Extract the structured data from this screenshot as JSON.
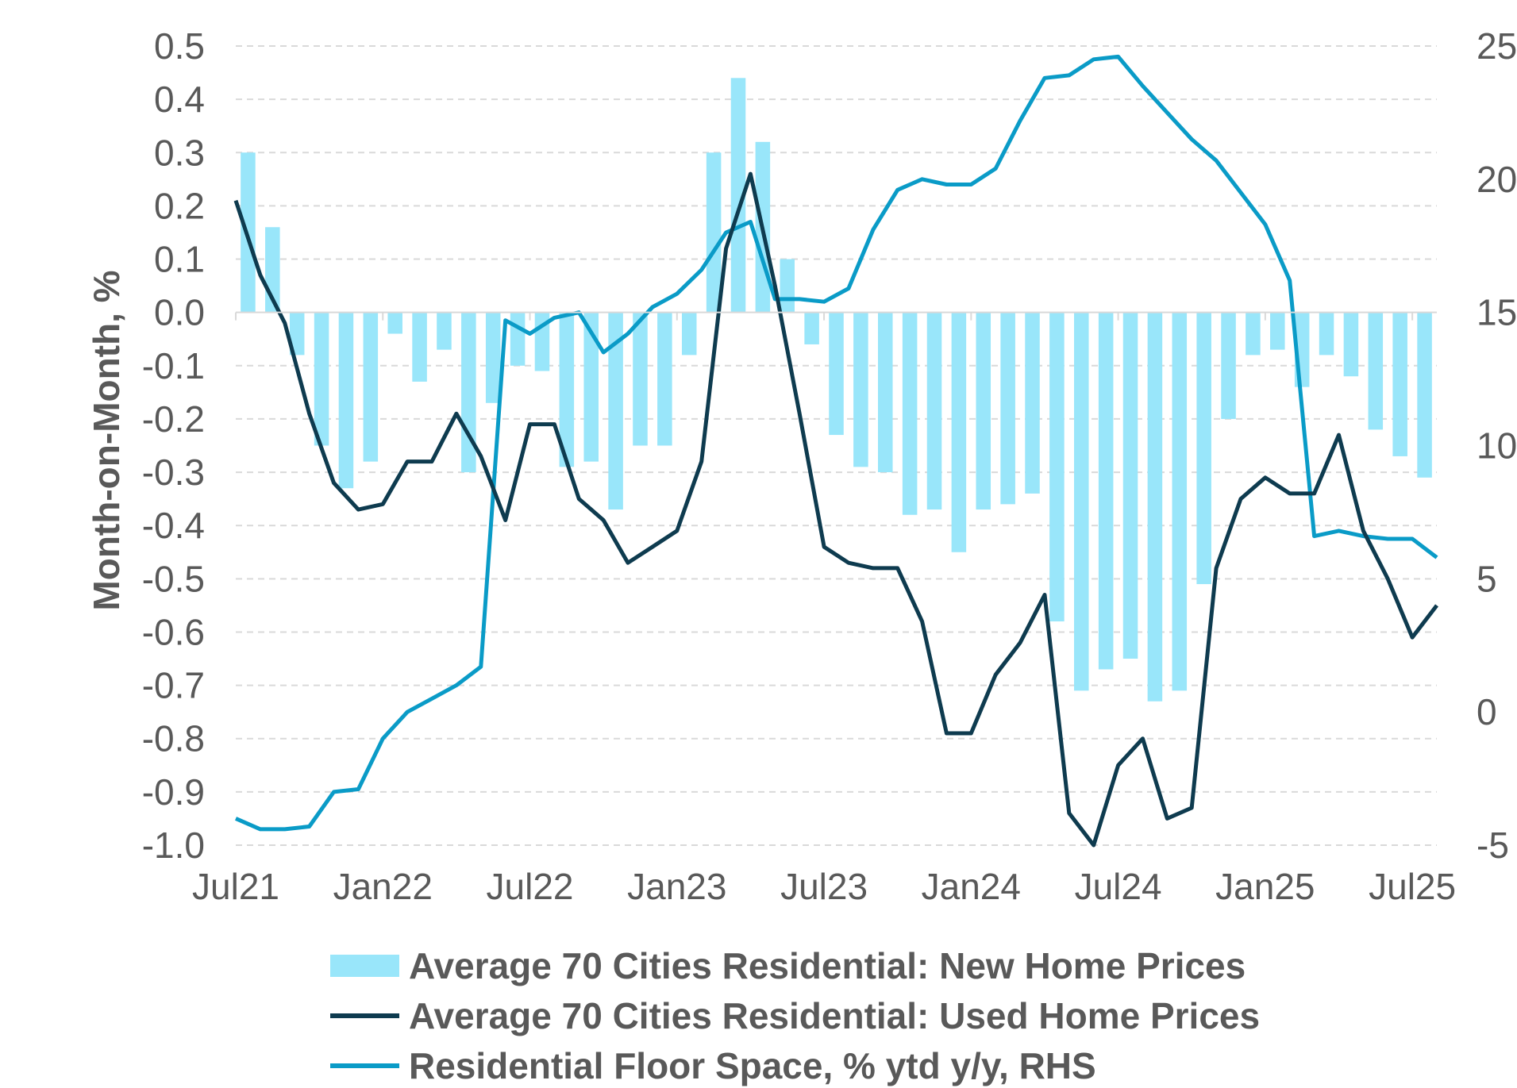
{
  "chart_data": {
    "type": "bar+line",
    "ylabel": "Month-on-Month, %",
    "left_axis": {
      "ylim": [
        -1.0,
        0.5
      ],
      "ticks": [
        "0.5",
        "0.4",
        "0.3",
        "0.2",
        "0.1",
        "0.0",
        "-0.1",
        "-0.2",
        "-0.3",
        "-0.4",
        "-0.5",
        "-0.6",
        "-0.7",
        "-0.8",
        "-0.9",
        "-1.0"
      ]
    },
    "right_axis": {
      "ylim": [
        -5,
        25
      ],
      "ticks": [
        "25",
        "20",
        "15",
        "10",
        "5",
        "0",
        "-5"
      ]
    },
    "x_tick_labels": [
      "Jul21",
      "Jan22",
      "Jul22",
      "Jan23",
      "Jul23",
      "Jan24",
      "Jul24",
      "Jan25",
      "Jul25"
    ],
    "gridlines": true,
    "legend_placement": "bottom",
    "series": [
      {
        "name": "Average 70 Cities Residential: New Home Prices",
        "type": "bar",
        "axis": "left",
        "color": "#99E6FA",
        "values": [
          0.3,
          0.16,
          -0.08,
          -0.25,
          -0.33,
          -0.28,
          -0.04,
          -0.13,
          -0.07,
          -0.3,
          -0.17,
          -0.1,
          -0.11,
          -0.29,
          -0.28,
          -0.37,
          -0.25,
          -0.25,
          -0.08,
          0.3,
          0.44,
          0.32,
          0.1,
          -0.06,
          -0.23,
          -0.29,
          -0.3,
          -0.38,
          -0.37,
          -0.45,
          -0.37,
          -0.36,
          -0.34,
          -0.58,
          -0.71,
          -0.67,
          -0.65,
          -0.73,
          -0.71,
          -0.51,
          -0.2,
          -0.08,
          -0.07,
          -0.14,
          -0.08,
          -0.12,
          -0.22,
          -0.27,
          -0.31
        ]
      },
      {
        "name": "Average 70 Cities Residential: Used Home Prices",
        "type": "line",
        "axis": "left",
        "color": "#0E3B4F",
        "values": [
          0.21,
          0.07,
          -0.02,
          -0.19,
          -0.32,
          -0.37,
          -0.36,
          -0.28,
          -0.28,
          -0.19,
          -0.27,
          -0.39,
          -0.21,
          -0.21,
          -0.35,
          -0.39,
          -0.47,
          -0.44,
          -0.41,
          -0.28,
          0.12,
          0.26,
          0.05,
          -0.19,
          -0.44,
          -0.47,
          -0.48,
          -0.48,
          -0.58,
          -0.79,
          -0.79,
          -0.68,
          -0.62,
          -0.53,
          -0.94,
          -1.0,
          -0.85,
          -0.8,
          -0.95,
          -0.93,
          -0.48,
          -0.35,
          -0.31,
          -0.34,
          -0.34,
          -0.23,
          -0.41,
          -0.5,
          -0.61,
          -0.55
        ]
      },
      {
        "name": "Residential Floor Space, % ytd y/y, RHS",
        "type": "line",
        "axis": "right",
        "color": "#0A9BC7",
        "values": [
          -4.0,
          -4.4,
          -4.4,
          -4.3,
          -3.0,
          -2.9,
          -1.0,
          0.0,
          0.5,
          1.0,
          1.7,
          14.7,
          14.2,
          14.8,
          15.0,
          13.5,
          14.2,
          15.2,
          15.7,
          16.6,
          18.0,
          18.4,
          15.5,
          15.5,
          15.4,
          15.9,
          18.1,
          19.6,
          20.0,
          19.8,
          19.8,
          20.4,
          22.2,
          23.8,
          23.9,
          24.5,
          24.6,
          23.5,
          22.5,
          21.5,
          20.7,
          19.5,
          18.3,
          16.2,
          6.6,
          6.8,
          6.6,
          6.5,
          6.5,
          5.8
        ]
      }
    ]
  }
}
